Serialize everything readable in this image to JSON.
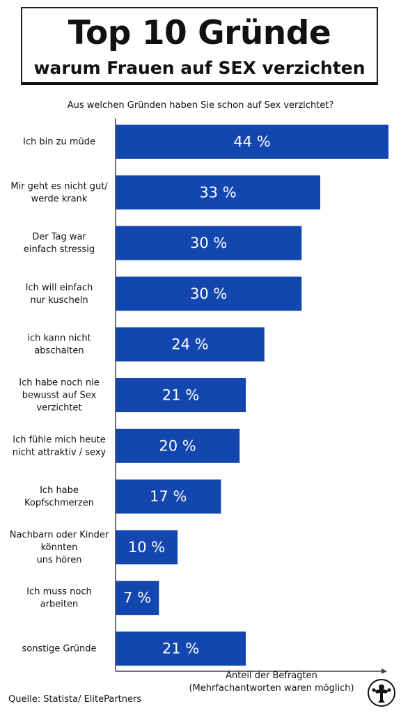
{
  "header": {
    "title": "Top 10 Gründe",
    "subtitle": "warum Frauen auf SEX verzichten"
  },
  "question": "Aus welchen Gründen haben Sie schon auf Sex verzichtet?",
  "axis_title": {
    "line1": "Anteil der Befragten",
    "line2": "(Mehrfachantworten waren möglich)"
  },
  "source": "Quelle: Statista/ ElitePartners",
  "logo_icon": "mascot-logo-icon",
  "colors": {
    "bar": "#1446b0",
    "axis": "#444444",
    "text": "#111111"
  },
  "chart_data": {
    "type": "bar",
    "orientation": "horizontal",
    "categories": [
      [
        "Ich bin zu müde"
      ],
      [
        "Mir geht es nicht gut/",
        "werde krank"
      ],
      [
        "Der Tag war",
        "einfach stressig"
      ],
      [
        "Ich will einfach",
        "nur kuscheln"
      ],
      [
        "ich kann nicht",
        "abschalten"
      ],
      [
        "Ich habe noch nie",
        "bewusst auf Sex",
        "verzichtet"
      ],
      [
        "Ich fühle mich heute",
        "nicht attraktiv / sexy"
      ],
      [
        "Ich habe",
        "Kopfschmerzen"
      ],
      [
        "Nachbarn oder Kinder",
        "könnten",
        "uns hören"
      ],
      [
        "Ich muss noch",
        "arbeiten"
      ],
      [
        "sonstige Gründe"
      ]
    ],
    "values": [
      44,
      33,
      30,
      30,
      24,
      21,
      20,
      17,
      10,
      7,
      21
    ],
    "value_labels": [
      "44 %",
      "33 %",
      "30 %",
      "30 %",
      "24 %",
      "21 %",
      "20 %",
      "17 %",
      "10 %",
      "7 %",
      "21 %"
    ],
    "xlim": [
      0,
      44
    ],
    "grid": false,
    "legend": "none"
  }
}
